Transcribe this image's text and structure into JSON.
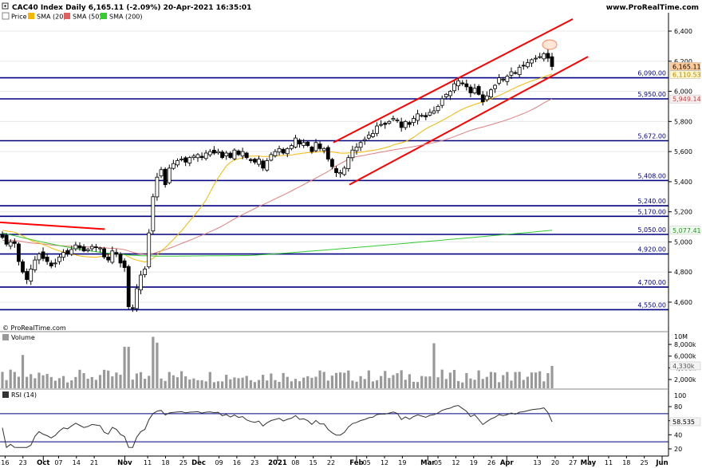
{
  "header": {
    "title": "CAC40 Index Daily 6,165.11 (-2.09%) 20-Apr-2021 16:35:01",
    "site": "www.ProRealTime.com",
    "credit": "© ProRealTime.com"
  },
  "legend": {
    "price": "Price",
    "sma20": "SMA (20)",
    "sma50": "SMA (50)",
    "sma200": "SMA (200)",
    "volume": "Volume",
    "rsi": "RSI (14)"
  },
  "colors": {
    "price": "#000000",
    "sma20": "#f5b800",
    "sma50": "#e08080",
    "sma200": "#33cc33",
    "levels": "#000080",
    "channel": "#ff0000",
    "volume": "#999999",
    "rsi": "#333333",
    "grid": "#e8e8e8"
  },
  "chart_data": [
    {
      "type": "candlestick",
      "title": "CAC40 Index Daily",
      "ylim": [
        4500,
        6500
      ],
      "y_ticks": [
        "6,400",
        "6,200",
        "6,000",
        "5,800",
        "5,600",
        "5,400",
        "5,200",
        "5,000",
        "4,800",
        "4,600"
      ],
      "x_ticks": [
        "16",
        "23",
        "Oct",
        "07",
        "14",
        "21",
        "Nov",
        "11",
        "18",
        "25",
        "Dec",
        "09",
        "16",
        "23",
        "2021",
        "08",
        "15",
        "22",
        "Feb",
        "05",
        "12",
        "19",
        "Mar",
        "05",
        "12",
        "19",
        "26",
        "Apr",
        "13",
        "20",
        "27",
        "May",
        "11",
        "18",
        "25",
        "Jun"
      ],
      "x_range": [
        "2020-09-14",
        "2021-06-01"
      ],
      "levels": [
        {
          "value": 6090,
          "label": "6,090.00"
        },
        {
          "value": 5950,
          "label": "5,950.00"
        },
        {
          "value": 5672,
          "label": "5,672.00"
        },
        {
          "value": 5408,
          "label": "5,408.00"
        },
        {
          "value": 5240,
          "label": "5,240.00"
        },
        {
          "value": 5170,
          "label": "5,170.00"
        },
        {
          "value": 5050,
          "label": "5,050.00"
        },
        {
          "value": 4920,
          "label": "4,920.00"
        },
        {
          "value": 4700,
          "label": "4,700.00"
        },
        {
          "value": 4550,
          "label": "4,550.00"
        }
      ],
      "last_labels": {
        "price": "6,165.11",
        "sma20": "6,110.53",
        "sma50": "5,949.14",
        "sma200": "5,077.41"
      },
      "close": [
        5030,
        4985,
        5000,
        4990,
        4870,
        4800,
        4750,
        4820,
        4880,
        4920,
        4890,
        4870,
        4840,
        4860,
        4900,
        4930,
        4920,
        4950,
        4980,
        4960,
        4940,
        4950,
        4970,
        4965,
        4960,
        4900,
        4880,
        4940,
        4920,
        4860,
        4830,
        4570,
        4560,
        4690,
        4780,
        4820,
        5060,
        5300,
        5430,
        5480,
        5380,
        5490,
        5520,
        5540,
        5550,
        5530,
        5560,
        5570,
        5580,
        5560,
        5590,
        5600,
        5590,
        5600,
        5560,
        5590,
        5560,
        5610,
        5580,
        5600,
        5560,
        5540,
        5530,
        5550,
        5490,
        5540,
        5580,
        5600,
        5620,
        5590,
        5620,
        5640,
        5690,
        5650,
        5660,
        5640,
        5600,
        5660,
        5620,
        5620,
        5550,
        5500,
        5460,
        5460,
        5490,
        5560,
        5610,
        5630,
        5660,
        5680,
        5710,
        5720,
        5770,
        5780,
        5780,
        5800,
        5820,
        5810,
        5760,
        5800,
        5780,
        5820,
        5850,
        5840,
        5830,
        5860,
        5870,
        5900,
        5950,
        5980,
        6000,
        6050,
        6070,
        6050,
        6030,
        5990,
        6020,
        5980,
        5930,
        5970,
        6010,
        6040,
        6090,
        6080,
        6100,
        6130,
        6120,
        6160,
        6170,
        6190,
        6210,
        6220,
        6230,
        6250,
        6220,
        6165
      ],
      "series": [
        {
          "name": "SMA (20)",
          "start_value": 5080,
          "end_value": 6110.53
        },
        {
          "name": "SMA (50)",
          "start_value": 5010,
          "end_value": 5949.14
        },
        {
          "name": "SMA (200)",
          "end_value": 5077.41
        }
      ]
    },
    {
      "type": "bar",
      "title": "Volume",
      "y_ticks": [
        "10M",
        "8,000k",
        "6,000k",
        "4,000k",
        "2,000k"
      ],
      "last_label": "4,330k",
      "ylim": [
        0,
        10000
      ]
    },
    {
      "type": "line",
      "title": "RSI (14)",
      "y_ticks": [
        "100",
        "80",
        "60",
        "40",
        "20"
      ],
      "ylim": [
        20,
        100
      ],
      "levels": [
        70,
        30
      ],
      "last_label": "58.535"
    }
  ]
}
